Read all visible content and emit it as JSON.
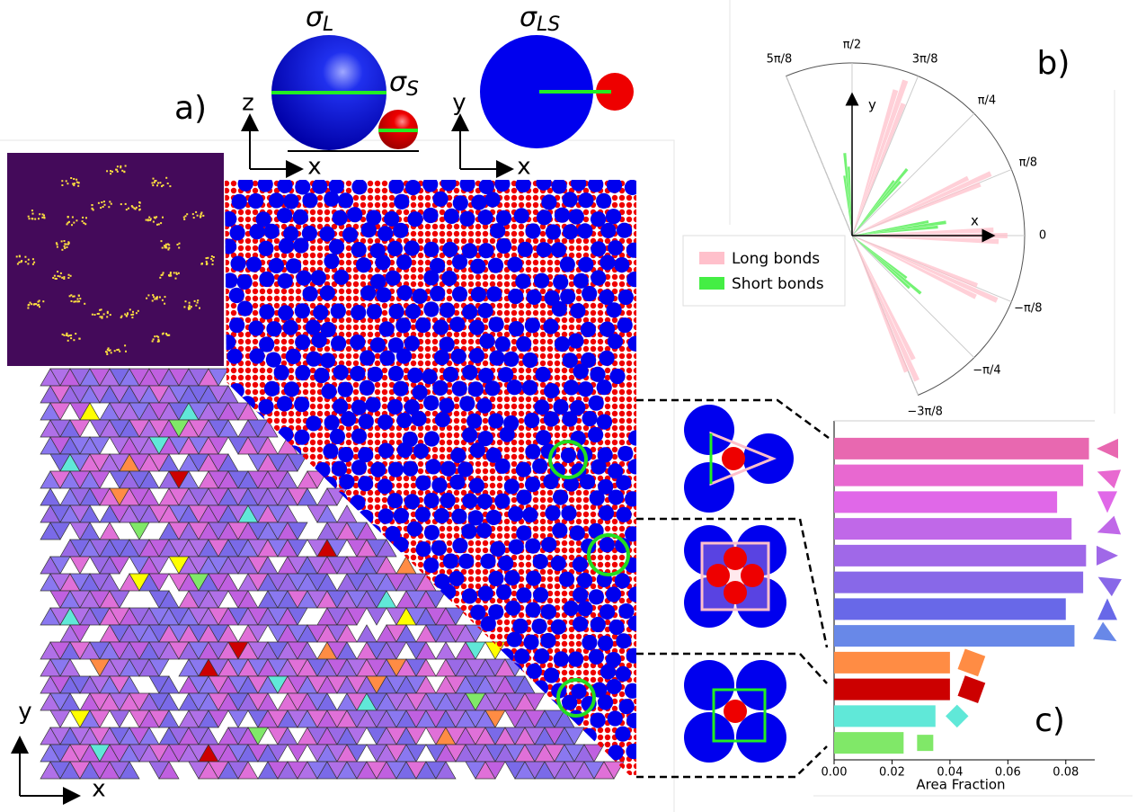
{
  "chart_data": [
    {
      "type": "polar_bar",
      "series": [
        {
          "name": "Long bonds",
          "color": "#ffc0cb",
          "theta": [
            1.2,
            1.24,
            1.28,
            0.38,
            0.42,
            0.46,
            -0.04,
            0,
            0.04,
            -0.46,
            -0.42,
            -0.38,
            -1.19,
            -1.15,
            -1.11
          ],
          "values": [
            0.82,
            0.95,
            0.88,
            0.8,
            0.88,
            0.75,
            0.85,
            0.9,
            0.82,
            0.8,
            0.92,
            0.78,
            0.85,
            0.92,
            0.8
          ]
        },
        {
          "name": "Short bonds",
          "color": "#44ee44",
          "theta": [
            1.62,
            1.66,
            1.7,
            0.84,
            0.88,
            0.92,
            0.1,
            0.14,
            0.18,
            -0.74,
            -0.7,
            -0.66
          ],
          "values": [
            0.4,
            0.48,
            0.35,
            0.42,
            0.5,
            0.4,
            0.5,
            0.55,
            0.45,
            0.45,
            0.52,
            0.4
          ]
        }
      ],
      "thetalim": [
        -1.178,
        1.963
      ],
      "thetaticks": [
        {
          "value": 1.963,
          "label": "5π/8"
        },
        {
          "value": 1.571,
          "label": "π/2"
        },
        {
          "value": 1.178,
          "label": "3π/8"
        },
        {
          "value": 0.785,
          "label": "π/4"
        },
        {
          "value": 0.393,
          "label": "π/8"
        },
        0,
        {
          "value": -0.393,
          "label": "−π/8"
        },
        {
          "value": -0.785,
          "label": "−π/4"
        },
        {
          "value": -1.178,
          "label": "−3π/8"
        }
      ],
      "rlim": [
        0,
        1
      ],
      "xlabel": "x",
      "ylabel": "y"
    },
    {
      "type": "barh",
      "categories": [
        null,
        null,
        null,
        null,
        null,
        null,
        null,
        null,
        null,
        null,
        null,
        null
      ],
      "values": [
        0.088,
        0.086,
        0.077,
        0.082,
        0.087,
        0.086,
        0.08,
        0.083,
        0.04,
        0.04,
        0.035,
        0.024
      ],
      "colors": [
        "#e868b0",
        "#e868d0",
        "#e068e8",
        "#c068e8",
        "#a068e8",
        "#8868e8",
        "#6868e8",
        "#6888e8",
        "#ff8c44",
        "#cc0000",
        "#60e8d8",
        "#80e868"
      ],
      "xlim": [
        0,
        0.09
      ],
      "xticks": [
        {
          "value": 0,
          "label": "0.00"
        },
        0.02,
        0.04,
        0.06,
        0.08
      ],
      "xlabel": "Area Fraction"
    }
  ],
  "figure": {
    "panel_labels": [
      "a)",
      "b)",
      "c)"
    ],
    "sigma_L": {
      "symbol": "σ",
      "sub": "L"
    },
    "sigma_S": {
      "symbol": "σ",
      "sub": "S"
    },
    "sigma_LS": {
      "symbol": "σ",
      "sub": "LS"
    },
    "side_axes": {
      "vertical": "z",
      "horizontal": "x"
    },
    "top_axes": {
      "vertical": "y",
      "horizontal": "x"
    },
    "corner_axes": {
      "vertical": "y",
      "horizontal": "x"
    }
  }
}
